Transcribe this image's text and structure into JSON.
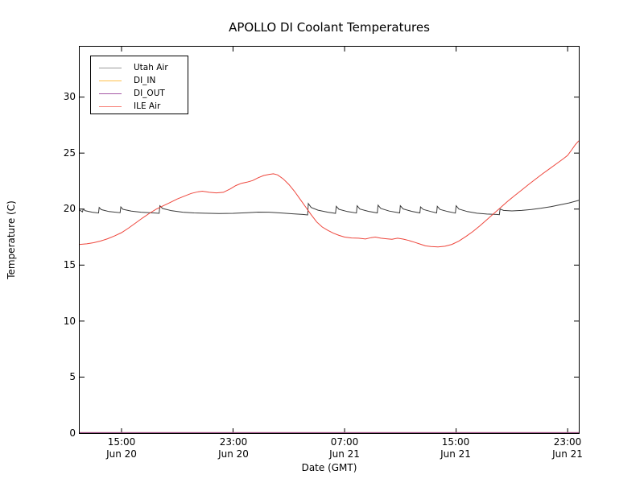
{
  "title": "APOLLO DI Coolant Temperatures",
  "xlabel": "Date (GMT)",
  "ylabel": "Temperature (C)",
  "legend": {
    "entries": [
      {
        "label": "Utah Air",
        "color": "#9a9a9a"
      },
      {
        "label": "DI_IN",
        "color": "#ffc04d"
      },
      {
        "label": "DI_OUT",
        "color": "#a559a5"
      },
      {
        "label": "ILE Air",
        "color": "#f8837a"
      }
    ]
  },
  "axes": {
    "y_ticks": [
      {
        "label": "0",
        "value": 0
      },
      {
        "label": "5",
        "value": 5
      },
      {
        "label": "10",
        "value": 10
      },
      {
        "label": "15",
        "value": 15
      },
      {
        "label": "20",
        "value": 20
      },
      {
        "label": "25",
        "value": 25
      },
      {
        "label": "30",
        "value": 30
      }
    ],
    "x_ticks": [
      {
        "time": "15:00",
        "date": "Jun 20",
        "t": 3
      },
      {
        "time": "23:00",
        "date": "Jun 20",
        "t": 11
      },
      {
        "time": "07:00",
        "date": "Jun 21",
        "t": 19
      },
      {
        "time": "15:00",
        "date": "Jun 21",
        "t": 27
      },
      {
        "time": "23:00",
        "date": "Jun 21",
        "t": 35
      }
    ]
  },
  "chart_data": {
    "type": "line",
    "title": "APOLLO DI Coolant Temperatures",
    "xlabel": "Date (GMT)",
    "ylabel": "Temperature (C)",
    "x_unit": "hours since Jun 20 12:00 GMT",
    "x_range": [
      0,
      35.8
    ],
    "ylim": [
      0,
      34.5
    ],
    "y_tick_values": [
      0,
      5,
      10,
      15,
      20,
      25,
      30
    ],
    "x_tick_labels": [
      "15:00 Jun 20",
      "23:00 Jun 20",
      "07:00 Jun 21",
      "15:00 Jun 21",
      "23:00 Jun 21"
    ],
    "grid": false,
    "legend_position": "upper left",
    "series": [
      {
        "name": "Utah Air",
        "color": "#3a3a3a",
        "points": [
          [
            0,
            19.9
          ],
          [
            0.2,
            19.75
          ],
          [
            0.25,
            20.0
          ],
          [
            0.4,
            19.85
          ],
          [
            0.9,
            19.72
          ],
          [
            1.35,
            19.65
          ],
          [
            1.4,
            20.15
          ],
          [
            1.55,
            19.95
          ],
          [
            2.1,
            19.78
          ],
          [
            2.9,
            19.68
          ],
          [
            2.95,
            20.2
          ],
          [
            3.1,
            19.98
          ],
          [
            3.7,
            19.82
          ],
          [
            4.4,
            19.72
          ],
          [
            5.3,
            19.66
          ],
          [
            5.7,
            19.62
          ],
          [
            5.75,
            20.3
          ],
          [
            5.95,
            20.05
          ],
          [
            6.6,
            19.85
          ],
          [
            7.4,
            19.72
          ],
          [
            8.2,
            19.66
          ],
          [
            9,
            19.63
          ],
          [
            10,
            19.6
          ],
          [
            11,
            19.62
          ],
          [
            12,
            19.68
          ],
          [
            12.8,
            19.73
          ],
          [
            13.6,
            19.72
          ],
          [
            14.5,
            19.65
          ],
          [
            15.3,
            19.58
          ],
          [
            16,
            19.52
          ],
          [
            16.35,
            19.48
          ],
          [
            16.4,
            20.5
          ],
          [
            16.6,
            20.15
          ],
          [
            17.1,
            19.9
          ],
          [
            17.8,
            19.72
          ],
          [
            18.35,
            19.62
          ],
          [
            18.4,
            20.25
          ],
          [
            18.6,
            19.98
          ],
          [
            19.2,
            19.78
          ],
          [
            19.85,
            19.65
          ],
          [
            19.9,
            20.3
          ],
          [
            20.1,
            20.0
          ],
          [
            20.7,
            19.8
          ],
          [
            21.35,
            19.66
          ],
          [
            21.4,
            20.35
          ],
          [
            21.6,
            20.05
          ],
          [
            22.2,
            19.82
          ],
          [
            22.95,
            19.66
          ],
          [
            23,
            20.3
          ],
          [
            23.2,
            20.02
          ],
          [
            23.8,
            19.8
          ],
          [
            24.4,
            19.66
          ],
          [
            24.45,
            20.2
          ],
          [
            24.65,
            19.97
          ],
          [
            25.2,
            19.78
          ],
          [
            25.6,
            19.66
          ],
          [
            25.65,
            20.25
          ],
          [
            25.85,
            19.97
          ],
          [
            26.4,
            19.78
          ],
          [
            26.95,
            19.64
          ],
          [
            27,
            20.3
          ],
          [
            27.2,
            20.0
          ],
          [
            27.8,
            19.78
          ],
          [
            28.5,
            19.63
          ],
          [
            29.2,
            19.56
          ],
          [
            29.9,
            19.52
          ],
          [
            30.1,
            19.5
          ],
          [
            30.15,
            20.0
          ],
          [
            30.4,
            19.88
          ],
          [
            31,
            19.84
          ],
          [
            31.7,
            19.88
          ],
          [
            32.4,
            19.97
          ],
          [
            33.1,
            20.08
          ],
          [
            33.8,
            20.22
          ],
          [
            34.5,
            20.4
          ],
          [
            35.1,
            20.55
          ],
          [
            35.8,
            20.78
          ]
        ]
      },
      {
        "name": "DI_IN",
        "color": "#ffaf38",
        "points": [
          [
            0,
            0
          ],
          [
            35.8,
            0
          ]
        ]
      },
      {
        "name": "DI_OUT",
        "color": "#8e3e8e",
        "points": [
          [
            0,
            0
          ],
          [
            35.8,
            0
          ]
        ]
      },
      {
        "name": "ILE Air",
        "color": "#ee463c",
        "points": [
          [
            0,
            16.85
          ],
          [
            0.5,
            16.9
          ],
          [
            1,
            17.0
          ],
          [
            1.5,
            17.15
          ],
          [
            2,
            17.35
          ],
          [
            2.5,
            17.6
          ],
          [
            3,
            17.9
          ],
          [
            3.5,
            18.3
          ],
          [
            4,
            18.75
          ],
          [
            4.5,
            19.2
          ],
          [
            5,
            19.62
          ],
          [
            5.5,
            20.0
          ],
          [
            6,
            20.3
          ],
          [
            6.5,
            20.6
          ],
          [
            7,
            20.9
          ],
          [
            7.5,
            21.15
          ],
          [
            8,
            21.4
          ],
          [
            8.5,
            21.55
          ],
          [
            8.8,
            21.6
          ],
          [
            9.3,
            21.5
          ],
          [
            9.8,
            21.45
          ],
          [
            10.3,
            21.5
          ],
          [
            10.8,
            21.8
          ],
          [
            11.2,
            22.1
          ],
          [
            11.6,
            22.3
          ],
          [
            12,
            22.4
          ],
          [
            12.4,
            22.55
          ],
          [
            12.8,
            22.8
          ],
          [
            13.2,
            23.0
          ],
          [
            13.6,
            23.1
          ],
          [
            13.9,
            23.15
          ],
          [
            14.2,
            23.05
          ],
          [
            14.6,
            22.7
          ],
          [
            15,
            22.2
          ],
          [
            15.4,
            21.6
          ],
          [
            15.8,
            20.9
          ],
          [
            16.2,
            20.2
          ],
          [
            16.6,
            19.5
          ],
          [
            17,
            18.85
          ],
          [
            17.4,
            18.4
          ],
          [
            17.8,
            18.1
          ],
          [
            18.2,
            17.85
          ],
          [
            18.6,
            17.65
          ],
          [
            19,
            17.5
          ],
          [
            19.5,
            17.42
          ],
          [
            20,
            17.4
          ],
          [
            20.5,
            17.33
          ],
          [
            20.9,
            17.45
          ],
          [
            21.2,
            17.5
          ],
          [
            21.6,
            17.4
          ],
          [
            22,
            17.35
          ],
          [
            22.4,
            17.3
          ],
          [
            22.8,
            17.4
          ],
          [
            23.2,
            17.32
          ],
          [
            23.6,
            17.2
          ],
          [
            24,
            17.05
          ],
          [
            24.4,
            16.88
          ],
          [
            24.8,
            16.72
          ],
          [
            25.2,
            16.66
          ],
          [
            25.7,
            16.62
          ],
          [
            26.2,
            16.68
          ],
          [
            26.7,
            16.85
          ],
          [
            27.2,
            17.15
          ],
          [
            27.7,
            17.55
          ],
          [
            28.2,
            18.0
          ],
          [
            28.7,
            18.5
          ],
          [
            29.2,
            19.05
          ],
          [
            29.7,
            19.6
          ],
          [
            30.2,
            20.15
          ],
          [
            30.7,
            20.7
          ],
          [
            31.2,
            21.2
          ],
          [
            31.7,
            21.7
          ],
          [
            32.2,
            22.2
          ],
          [
            32.7,
            22.68
          ],
          [
            33.2,
            23.15
          ],
          [
            33.7,
            23.6
          ],
          [
            34.2,
            24.05
          ],
          [
            34.7,
            24.5
          ],
          [
            35,
            24.8
          ],
          [
            35.3,
            25.3
          ],
          [
            35.55,
            25.75
          ],
          [
            35.8,
            26.1
          ]
        ]
      }
    ]
  }
}
